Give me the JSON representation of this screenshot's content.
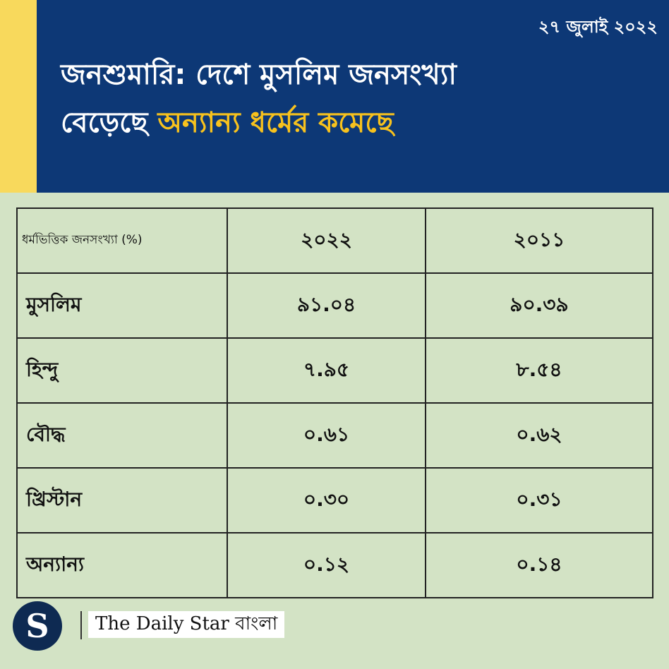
{
  "header": {
    "date": "২৭ জুলাই ২০২২",
    "title_line1": "জনশুমারি: দেশে মুসলিম জনসংখ্যা",
    "title_line2_plain": "বেড়েছে",
    "title_line2_highlight": "অন্যান্য ধর্মের কমেছে"
  },
  "table": {
    "header": [
      "ধর্মভিত্তিক জনসংখ্যা (%)",
      "২০২২",
      "২০১১"
    ],
    "rows": [
      [
        "মুসলিম",
        "৯১.০৪",
        "৯০.৩৯"
      ],
      [
        "হিন্দু",
        "৭.৯৫",
        "৮.৫৪"
      ],
      [
        "বৌদ্ধ",
        "০.৬১",
        "০.৬২"
      ],
      [
        "খ্রিস্টান",
        "০.৩০",
        "০.৩১"
      ],
      [
        "অন্যান্য",
        "০.১২",
        "০.১৪"
      ]
    ]
  },
  "footer": {
    "logo_letter": "S",
    "brand": "The Daily Star বাংলা"
  },
  "colors": {
    "header_bg": "#0d3876",
    "accent_yellow": "#f8d95c",
    "highlight_text": "#f8c21d",
    "body_bg": "#d3e3c5"
  }
}
